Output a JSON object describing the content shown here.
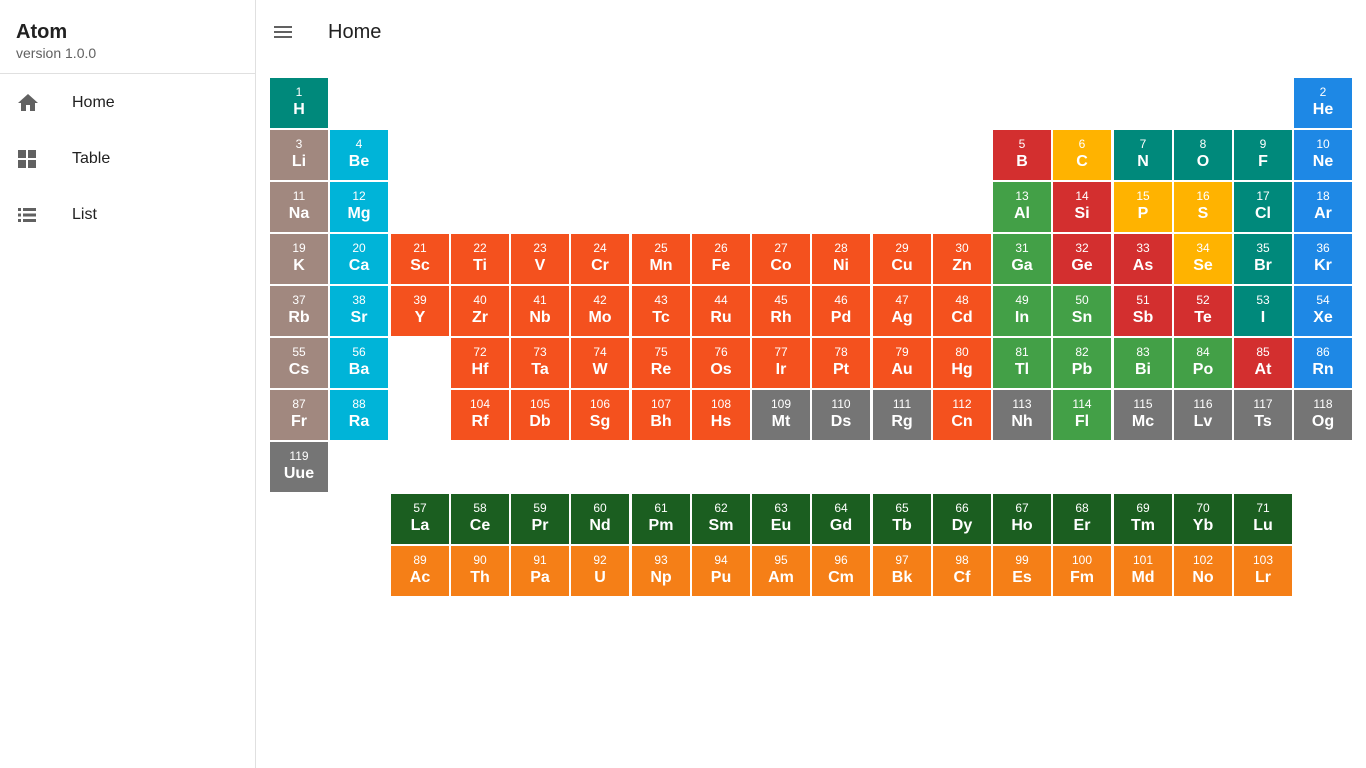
{
  "app": {
    "title": "Atom",
    "version": "version 1.0.0"
  },
  "nav": [
    {
      "label": "Home",
      "icon": "home-icon"
    },
    {
      "label": "Table",
      "icon": "grid-icon"
    },
    {
      "label": "List",
      "icon": "list-icon"
    }
  ],
  "header": {
    "title": "Home",
    "menu_icon": "menu-icon"
  },
  "colors": {
    "alkali": "#a1887f",
    "alkaline": "#00b4d8",
    "transition": "#f4511e",
    "post": "#43a047",
    "metalloid": "#d32f2f",
    "nonmetal": "#ffb300",
    "halogen": "#00897b",
    "noble": "#1e88e5",
    "unknown": "#757575",
    "lanthanide": "#1b5e20",
    "actinide": "#f57f17"
  },
  "elements": [
    {
      "n": 1,
      "s": "H",
      "r": 1,
      "c": 1,
      "t": "halogen"
    },
    {
      "n": 2,
      "s": "He",
      "r": 1,
      "c": 18,
      "t": "noble"
    },
    {
      "n": 3,
      "s": "Li",
      "r": 2,
      "c": 1,
      "t": "alkali"
    },
    {
      "n": 4,
      "s": "Be",
      "r": 2,
      "c": 2,
      "t": "alkaline"
    },
    {
      "n": 5,
      "s": "B",
      "r": 2,
      "c": 13,
      "t": "metalloid"
    },
    {
      "n": 6,
      "s": "C",
      "r": 2,
      "c": 14,
      "t": "nonmetal"
    },
    {
      "n": 7,
      "s": "N",
      "r": 2,
      "c": 15,
      "t": "halogen"
    },
    {
      "n": 8,
      "s": "O",
      "r": 2,
      "c": 16,
      "t": "halogen"
    },
    {
      "n": 9,
      "s": "F",
      "r": 2,
      "c": 17,
      "t": "halogen"
    },
    {
      "n": 10,
      "s": "Ne",
      "r": 2,
      "c": 18,
      "t": "noble"
    },
    {
      "n": 11,
      "s": "Na",
      "r": 3,
      "c": 1,
      "t": "alkali"
    },
    {
      "n": 12,
      "s": "Mg",
      "r": 3,
      "c": 2,
      "t": "alkaline"
    },
    {
      "n": 13,
      "s": "Al",
      "r": 3,
      "c": 13,
      "t": "post"
    },
    {
      "n": 14,
      "s": "Si",
      "r": 3,
      "c": 14,
      "t": "metalloid"
    },
    {
      "n": 15,
      "s": "P",
      "r": 3,
      "c": 15,
      "t": "nonmetal"
    },
    {
      "n": 16,
      "s": "S",
      "r": 3,
      "c": 16,
      "t": "nonmetal"
    },
    {
      "n": 17,
      "s": "Cl",
      "r": 3,
      "c": 17,
      "t": "halogen"
    },
    {
      "n": 18,
      "s": "Ar",
      "r": 3,
      "c": 18,
      "t": "noble"
    },
    {
      "n": 19,
      "s": "K",
      "r": 4,
      "c": 1,
      "t": "alkali"
    },
    {
      "n": 20,
      "s": "Ca",
      "r": 4,
      "c": 2,
      "t": "alkaline"
    },
    {
      "n": 21,
      "s": "Sc",
      "r": 4,
      "c": 3,
      "t": "transition"
    },
    {
      "n": 22,
      "s": "Ti",
      "r": 4,
      "c": 4,
      "t": "transition"
    },
    {
      "n": 23,
      "s": "V",
      "r": 4,
      "c": 5,
      "t": "transition"
    },
    {
      "n": 24,
      "s": "Cr",
      "r": 4,
      "c": 6,
      "t": "transition"
    },
    {
      "n": 25,
      "s": "Mn",
      "r": 4,
      "c": 7,
      "t": "transition"
    },
    {
      "n": 26,
      "s": "Fe",
      "r": 4,
      "c": 8,
      "t": "transition"
    },
    {
      "n": 27,
      "s": "Co",
      "r": 4,
      "c": 9,
      "t": "transition"
    },
    {
      "n": 28,
      "s": "Ni",
      "r": 4,
      "c": 10,
      "t": "transition"
    },
    {
      "n": 29,
      "s": "Cu",
      "r": 4,
      "c": 11,
      "t": "transition"
    },
    {
      "n": 30,
      "s": "Zn",
      "r": 4,
      "c": 12,
      "t": "transition"
    },
    {
      "n": 31,
      "s": "Ga",
      "r": 4,
      "c": 13,
      "t": "post"
    },
    {
      "n": 32,
      "s": "Ge",
      "r": 4,
      "c": 14,
      "t": "metalloid"
    },
    {
      "n": 33,
      "s": "As",
      "r": 4,
      "c": 15,
      "t": "metalloid"
    },
    {
      "n": 34,
      "s": "Se",
      "r": 4,
      "c": 16,
      "t": "nonmetal"
    },
    {
      "n": 35,
      "s": "Br",
      "r": 4,
      "c": 17,
      "t": "halogen"
    },
    {
      "n": 36,
      "s": "Kr",
      "r": 4,
      "c": 18,
      "t": "noble"
    },
    {
      "n": 37,
      "s": "Rb",
      "r": 5,
      "c": 1,
      "t": "alkali"
    },
    {
      "n": 38,
      "s": "Sr",
      "r": 5,
      "c": 2,
      "t": "alkaline"
    },
    {
      "n": 39,
      "s": "Y",
      "r": 5,
      "c": 3,
      "t": "transition"
    },
    {
      "n": 40,
      "s": "Zr",
      "r": 5,
      "c": 4,
      "t": "transition"
    },
    {
      "n": 41,
      "s": "Nb",
      "r": 5,
      "c": 5,
      "t": "transition"
    },
    {
      "n": 42,
      "s": "Mo",
      "r": 5,
      "c": 6,
      "t": "transition"
    },
    {
      "n": 43,
      "s": "Tc",
      "r": 5,
      "c": 7,
      "t": "transition"
    },
    {
      "n": 44,
      "s": "Ru",
      "r": 5,
      "c": 8,
      "t": "transition"
    },
    {
      "n": 45,
      "s": "Rh",
      "r": 5,
      "c": 9,
      "t": "transition"
    },
    {
      "n": 46,
      "s": "Pd",
      "r": 5,
      "c": 10,
      "t": "transition"
    },
    {
      "n": 47,
      "s": "Ag",
      "r": 5,
      "c": 11,
      "t": "transition"
    },
    {
      "n": 48,
      "s": "Cd",
      "r": 5,
      "c": 12,
      "t": "transition"
    },
    {
      "n": 49,
      "s": "In",
      "r": 5,
      "c": 13,
      "t": "post"
    },
    {
      "n": 50,
      "s": "Sn",
      "r": 5,
      "c": 14,
      "t": "post"
    },
    {
      "n": 51,
      "s": "Sb",
      "r": 5,
      "c": 15,
      "t": "metalloid"
    },
    {
      "n": 52,
      "s": "Te",
      "r": 5,
      "c": 16,
      "t": "metalloid"
    },
    {
      "n": 53,
      "s": "I",
      "r": 5,
      "c": 17,
      "t": "halogen"
    },
    {
      "n": 54,
      "s": "Xe",
      "r": 5,
      "c": 18,
      "t": "noble"
    },
    {
      "n": 55,
      "s": "Cs",
      "r": 6,
      "c": 1,
      "t": "alkali"
    },
    {
      "n": 56,
      "s": "Ba",
      "r": 6,
      "c": 2,
      "t": "alkaline"
    },
    {
      "n": 72,
      "s": "Hf",
      "r": 6,
      "c": 4,
      "t": "transition"
    },
    {
      "n": 73,
      "s": "Ta",
      "r": 6,
      "c": 5,
      "t": "transition"
    },
    {
      "n": 74,
      "s": "W",
      "r": 6,
      "c": 6,
      "t": "transition"
    },
    {
      "n": 75,
      "s": "Re",
      "r": 6,
      "c": 7,
      "t": "transition"
    },
    {
      "n": 76,
      "s": "Os",
      "r": 6,
      "c": 8,
      "t": "transition"
    },
    {
      "n": 77,
      "s": "Ir",
      "r": 6,
      "c": 9,
      "t": "transition"
    },
    {
      "n": 78,
      "s": "Pt",
      "r": 6,
      "c": 10,
      "t": "transition"
    },
    {
      "n": 79,
      "s": "Au",
      "r": 6,
      "c": 11,
      "t": "transition"
    },
    {
      "n": 80,
      "s": "Hg",
      "r": 6,
      "c": 12,
      "t": "transition"
    },
    {
      "n": 81,
      "s": "Tl",
      "r": 6,
      "c": 13,
      "t": "post"
    },
    {
      "n": 82,
      "s": "Pb",
      "r": 6,
      "c": 14,
      "t": "post"
    },
    {
      "n": 83,
      "s": "Bi",
      "r": 6,
      "c": 15,
      "t": "post"
    },
    {
      "n": 84,
      "s": "Po",
      "r": 6,
      "c": 16,
      "t": "post"
    },
    {
      "n": 85,
      "s": "At",
      "r": 6,
      "c": 17,
      "t": "metalloid"
    },
    {
      "n": 86,
      "s": "Rn",
      "r": 6,
      "c": 18,
      "t": "noble"
    },
    {
      "n": 87,
      "s": "Fr",
      "r": 7,
      "c": 1,
      "t": "alkali"
    },
    {
      "n": 88,
      "s": "Ra",
      "r": 7,
      "c": 2,
      "t": "alkaline"
    },
    {
      "n": 104,
      "s": "Rf",
      "r": 7,
      "c": 4,
      "t": "transition"
    },
    {
      "n": 105,
      "s": "Db",
      "r": 7,
      "c": 5,
      "t": "transition"
    },
    {
      "n": 106,
      "s": "Sg",
      "r": 7,
      "c": 6,
      "t": "transition"
    },
    {
      "n": 107,
      "s": "Bh",
      "r": 7,
      "c": 7,
      "t": "transition"
    },
    {
      "n": 108,
      "s": "Hs",
      "r": 7,
      "c": 8,
      "t": "transition"
    },
    {
      "n": 109,
      "s": "Mt",
      "r": 7,
      "c": 9,
      "t": "unknown"
    },
    {
      "n": 110,
      "s": "Ds",
      "r": 7,
      "c": 10,
      "t": "unknown"
    },
    {
      "n": 111,
      "s": "Rg",
      "r": 7,
      "c": 11,
      "t": "unknown"
    },
    {
      "n": 112,
      "s": "Cn",
      "r": 7,
      "c": 12,
      "t": "transition"
    },
    {
      "n": 113,
      "s": "Nh",
      "r": 7,
      "c": 13,
      "t": "unknown"
    },
    {
      "n": 114,
      "s": "Fl",
      "r": 7,
      "c": 14,
      "t": "post"
    },
    {
      "n": 115,
      "s": "Mc",
      "r": 7,
      "c": 15,
      "t": "unknown"
    },
    {
      "n": 116,
      "s": "Lv",
      "r": 7,
      "c": 16,
      "t": "unknown"
    },
    {
      "n": 117,
      "s": "Ts",
      "r": 7,
      "c": 17,
      "t": "unknown"
    },
    {
      "n": 118,
      "s": "Og",
      "r": 7,
      "c": 18,
      "t": "unknown"
    },
    {
      "n": 119,
      "s": "Uue",
      "r": 8,
      "c": 1,
      "t": "unknown"
    },
    {
      "n": 57,
      "s": "La",
      "r": 9,
      "c": 3,
      "t": "lanthanide"
    },
    {
      "n": 58,
      "s": "Ce",
      "r": 9,
      "c": 4,
      "t": "lanthanide"
    },
    {
      "n": 59,
      "s": "Pr",
      "r": 9,
      "c": 5,
      "t": "lanthanide"
    },
    {
      "n": 60,
      "s": "Nd",
      "r": 9,
      "c": 6,
      "t": "lanthanide"
    },
    {
      "n": 61,
      "s": "Pm",
      "r": 9,
      "c": 7,
      "t": "lanthanide"
    },
    {
      "n": 62,
      "s": "Sm",
      "r": 9,
      "c": 8,
      "t": "lanthanide"
    },
    {
      "n": 63,
      "s": "Eu",
      "r": 9,
      "c": 9,
      "t": "lanthanide"
    },
    {
      "n": 64,
      "s": "Gd",
      "r": 9,
      "c": 10,
      "t": "lanthanide"
    },
    {
      "n": 65,
      "s": "Tb",
      "r": 9,
      "c": 11,
      "t": "lanthanide"
    },
    {
      "n": 66,
      "s": "Dy",
      "r": 9,
      "c": 12,
      "t": "lanthanide"
    },
    {
      "n": 67,
      "s": "Ho",
      "r": 9,
      "c": 13,
      "t": "lanthanide"
    },
    {
      "n": 68,
      "s": "Er",
      "r": 9,
      "c": 14,
      "t": "lanthanide"
    },
    {
      "n": 69,
      "s": "Tm",
      "r": 9,
      "c": 15,
      "t": "lanthanide"
    },
    {
      "n": 70,
      "s": "Yb",
      "r": 9,
      "c": 16,
      "t": "lanthanide"
    },
    {
      "n": 71,
      "s": "Lu",
      "r": 9,
      "c": 17,
      "t": "lanthanide"
    },
    {
      "n": 89,
      "s": "Ac",
      "r": 10,
      "c": 3,
      "t": "actinide"
    },
    {
      "n": 90,
      "s": "Th",
      "r": 10,
      "c": 4,
      "t": "actinide"
    },
    {
      "n": 91,
      "s": "Pa",
      "r": 10,
      "c": 5,
      "t": "actinide"
    },
    {
      "n": 92,
      "s": "U",
      "r": 10,
      "c": 6,
      "t": "actinide"
    },
    {
      "n": 93,
      "s": "Np",
      "r": 10,
      "c": 7,
      "t": "actinide"
    },
    {
      "n": 94,
      "s": "Pu",
      "r": 10,
      "c": 8,
      "t": "actinide"
    },
    {
      "n": 95,
      "s": "Am",
      "r": 10,
      "c": 9,
      "t": "actinide"
    },
    {
      "n": 96,
      "s": "Cm",
      "r": 10,
      "c": 10,
      "t": "actinide"
    },
    {
      "n": 97,
      "s": "Bk",
      "r": 10,
      "c": 11,
      "t": "actinide"
    },
    {
      "n": 98,
      "s": "Cf",
      "r": 10,
      "c": 12,
      "t": "actinide"
    },
    {
      "n": 99,
      "s": "Es",
      "r": 10,
      "c": 13,
      "t": "actinide"
    },
    {
      "n": 100,
      "s": "Fm",
      "r": 10,
      "c": 14,
      "t": "actinide"
    },
    {
      "n": 101,
      "s": "Md",
      "r": 10,
      "c": 15,
      "t": "actinide"
    },
    {
      "n": 102,
      "s": "No",
      "r": 10,
      "c": 16,
      "t": "actinide"
    },
    {
      "n": 103,
      "s": "Lr",
      "r": 10,
      "c": 17,
      "t": "actinide"
    }
  ]
}
